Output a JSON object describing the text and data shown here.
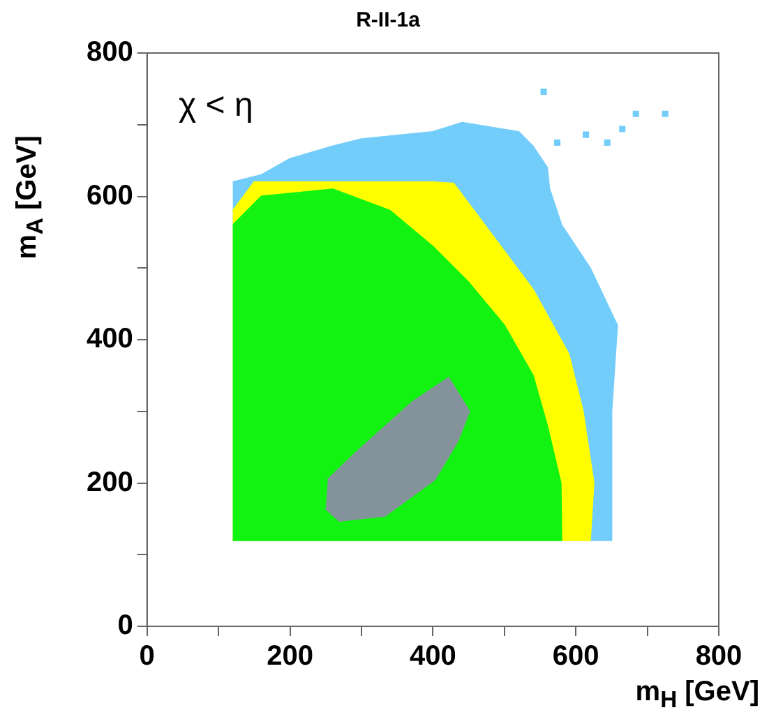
{
  "chart_data": {
    "type": "area",
    "title": "R-II-1a",
    "xlabel": "m$_{H}$ [GeV]",
    "ylabel": "m$_{A}$ [GeV]",
    "annotations": [
      "χ < η"
    ],
    "xlim": [
      0,
      800
    ],
    "ylim": [
      0,
      800
    ],
    "xticks": [
      0,
      {
        "value": 100,
        "label": null
      },
      200,
      {
        "value": 300,
        "label": null
      },
      400,
      {
        "value": 500,
        "label": null
      },
      600,
      {
        "value": 700,
        "label": null
      },
      800
    ],
    "yticks": [
      0,
      {
        "value": 100,
        "label": null
      },
      200,
      {
        "value": 300,
        "label": null
      },
      400,
      {
        "value": 500,
        "label": null
      },
      600,
      {
        "value": 700,
        "label": null
      },
      800
    ],
    "grid": false,
    "legend": false,
    "series": [
      {
        "color": "#73cdfa",
        "x": [
          120,
          650,
          650,
          658,
          620,
          580,
          563,
          560,
          540,
          520,
          441,
          400,
          300,
          260,
          199,
          160,
          120
        ],
        "values": [
          120,
          120,
          300,
          420,
          500,
          560,
          611,
          640,
          670,
          690,
          703,
          690,
          680,
          670,
          652,
          630,
          620
        ]
      },
      {
        "type": "scatter",
        "color": "#73cdfa",
        "marker": "square",
        "x": [
          555,
          574,
          614,
          644,
          665,
          684,
          725
        ],
        "values": [
          746,
          675,
          686,
          675,
          694,
          715,
          715
        ]
      },
      {
        "color": "#ffff00",
        "x": [
          120,
          620,
          625,
          610,
          590,
          540,
          480,
          429,
          400,
          260,
          150,
          120
        ],
        "values": [
          120,
          120,
          200,
          300,
          380,
          470,
          550,
          618,
          620,
          620,
          620,
          580
        ]
      },
      {
        "color": "#12f312",
        "x": [
          120,
          580,
          579,
          560,
          540,
          500,
          450,
          400,
          340,
          260,
          160,
          120
        ],
        "values": [
          120,
          120,
          200,
          280,
          350,
          420,
          480,
          530,
          580,
          610,
          600,
          560
        ]
      },
      {
        "color": "#84939b",
        "x": [
          250,
          269,
          333,
          403,
          435,
          451,
          422,
          371,
          295,
          253
        ],
        "values": [
          164,
          147,
          154,
          205,
          259,
          300,
          347,
          313,
          245,
          205
        ]
      }
    ]
  }
}
